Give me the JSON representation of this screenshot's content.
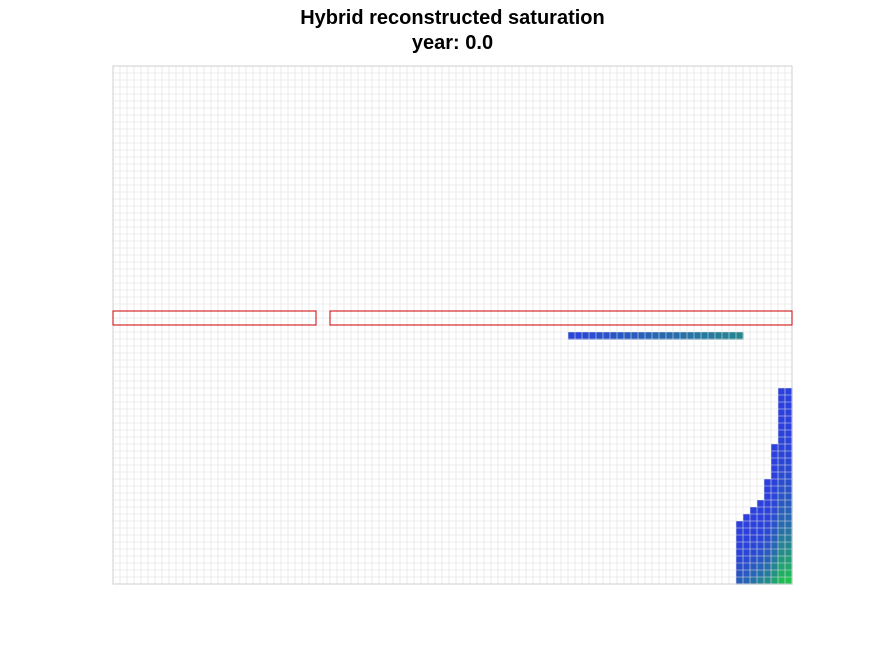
{
  "title": "Hybrid reconstructed saturation",
  "subtitle": "year: 0.0",
  "chart_data": {
    "type": "heatmap",
    "title": "Hybrid reconstructed saturation",
    "subtitle": "year: 0.0",
    "grid": true,
    "grid_size": {
      "columns": 97,
      "rows": 74
    },
    "colors": {
      "grid_line": "#dedede",
      "barrier_outline": "#cc0000",
      "low_saturation": "#2b3de0",
      "high_saturation": "#1ec24f"
    },
    "barriers": [
      {
        "name": "left barrier",
        "col_start": 0,
        "col_end": 28,
        "row_start": 35,
        "row_end": 37
      },
      {
        "name": "right barrier",
        "col_start": 31,
        "col_end": 96,
        "row_start": 35,
        "row_end": 37
      }
    ],
    "plume_under_barrier": {
      "row": 38,
      "col_start": 65,
      "col_end": 89,
      "saturation_start": 0.05,
      "saturation_end": 0.55
    },
    "plume_columns": [
      {
        "col": 89,
        "top_row": 65,
        "saturation_bottom": 0.25
      },
      {
        "col": 90,
        "top_row": 64,
        "saturation_bottom": 0.3
      },
      {
        "col": 91,
        "top_row": 63,
        "saturation_bottom": 0.4
      },
      {
        "col": 92,
        "top_row": 62,
        "saturation_bottom": 0.5
      },
      {
        "col": 93,
        "top_row": 59,
        "saturation_bottom": 0.6
      },
      {
        "col": 94,
        "top_row": 54,
        "saturation_bottom": 0.75
      },
      {
        "col": 95,
        "top_row": 46,
        "saturation_bottom": 0.95
      },
      {
        "col": 96,
        "top_row": 46,
        "saturation_bottom": 1.0
      }
    ]
  }
}
